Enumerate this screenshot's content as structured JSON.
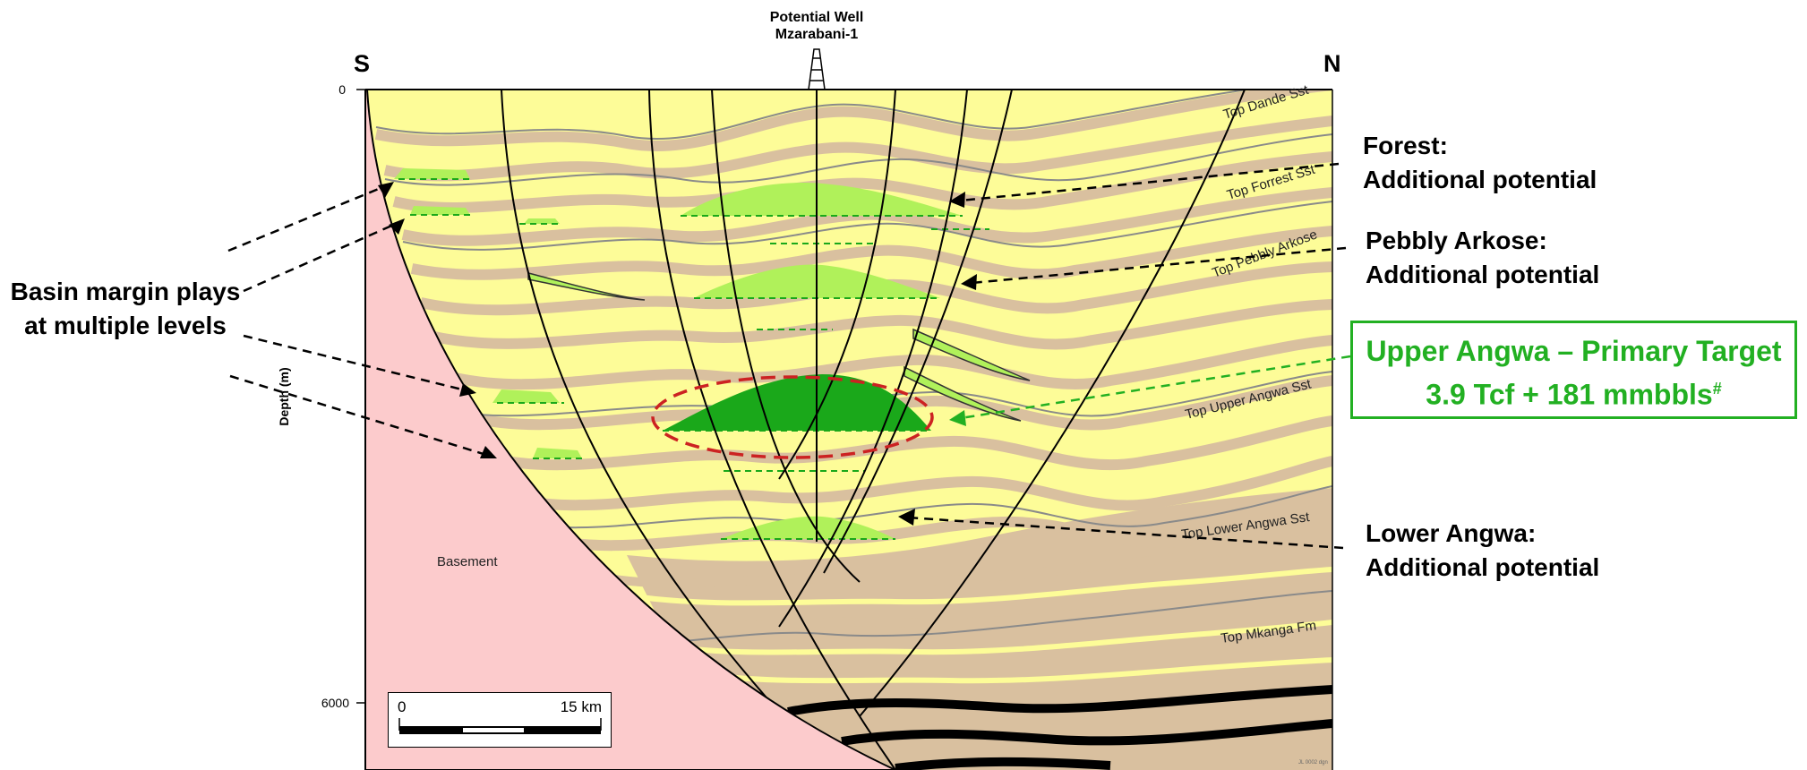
{
  "well": {
    "line1": "Potential Well",
    "line2": "Mzarabani-1"
  },
  "directions": {
    "south": "S",
    "north": "N"
  },
  "axis": {
    "ylabel": "Depth (m)",
    "ticks": [
      "0",
      "6000"
    ]
  },
  "basement_label": "Basement",
  "horizons": [
    "Top Dande Sst",
    "Top Forrest Sst",
    "Top Pebbly Arkose",
    "Top Upper Angwa Sst",
    "Top Lower Angwa Sst",
    "Top Mkanga Fm"
  ],
  "annotations": {
    "forest": {
      "title": "Forest:",
      "sub": "Additional potential"
    },
    "pebbly": {
      "title": "Pebbly Arkose:",
      "sub": "Additional potential"
    },
    "lower_angwa": {
      "title": "Lower Angwa:",
      "sub": "Additional potential"
    },
    "basin_margin": {
      "line1": "Basin margin plays",
      "line2": "at multiple levels"
    }
  },
  "primary_target": {
    "line1": "Upper Angwa – Primary Target",
    "line2": "3.9 Tcf + 181 mmbbls",
    "footnote": "#"
  },
  "scale_bar": {
    "start": "0",
    "end": "15 km"
  },
  "colors": {
    "basement": "#fccbcc",
    "sand": "#fdfc98",
    "shale": "#d9c09f",
    "prospect_light": "#b0f15a",
    "prospect_primary": "#1aa81a",
    "ellipse": "#cc2222",
    "target_text": "#22b022"
  }
}
